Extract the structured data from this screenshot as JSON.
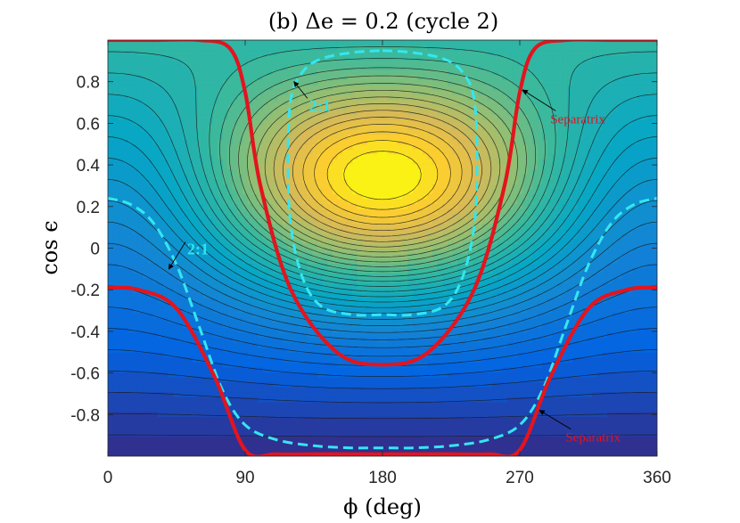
{
  "chart_data": {
    "type": "contour",
    "title": "(b) Δe = 0.2 (cycle 2)",
    "xlabel": "ϕ (deg)",
    "ylabel": "cos ϵ",
    "xlim": [
      0,
      360
    ],
    "ylim": [
      -1,
      1
    ],
    "xticks": [
      0,
      90,
      180,
      270,
      360
    ],
    "yticks": [
      -0.8,
      -0.6,
      -0.4,
      -0.2,
      0,
      0.2,
      0.4,
      0.6,
      0.8
    ],
    "xtick_labels": [
      "0",
      "90",
      "180",
      "270",
      "360"
    ],
    "ytick_labels": [
      "-0.8",
      "-0.6",
      "-0.4",
      "-0.2",
      "0",
      "0.2",
      "0.4",
      "0.6",
      "0.8"
    ],
    "grid": false,
    "colormap": "parula",
    "hamiltonian": {
      "center_cos": 0.42,
      "alpha": 3.0,
      "width": 0.33
    },
    "separatrix_lower": {
      "phi": [
        0,
        20,
        45,
        70,
        90,
        110,
        135,
        160,
        180,
        200,
        225,
        250,
        270,
        290,
        315,
        340,
        360
      ],
      "cos": [
        -0.19,
        -0.2,
        -0.29,
        -0.62,
        -0.97,
        -0.99,
        -0.99,
        -0.99,
        -0.99,
        -0.99,
        -0.99,
        -0.99,
        -0.97,
        -0.62,
        -0.29,
        -0.2,
        -0.19
      ]
    },
    "separatrix_upper": {
      "phi": [
        0,
        30,
        60,
        80,
        90,
        100,
        120,
        150,
        180,
        210,
        240,
        260,
        270,
        280,
        300,
        330,
        360
      ],
      "cos": [
        1.0,
        1.0,
        1.0,
        0.96,
        0.75,
        0.3,
        -0.2,
        -0.5,
        -0.56,
        -0.5,
        -0.2,
        0.3,
        0.75,
        0.96,
        1.0,
        1.0,
        1.0
      ]
    },
    "resonance_upper": {
      "phi": [
        180,
        200,
        220,
        232,
        240,
        242,
        240,
        232,
        220,
        200,
        180,
        160,
        140,
        128,
        120,
        118,
        120,
        128,
        140,
        160,
        180
      ],
      "cos": [
        0.95,
        0.94,
        0.91,
        0.85,
        0.72,
        0.42,
        0.1,
        -0.15,
        -0.28,
        -0.32,
        -0.32,
        -0.32,
        -0.28,
        -0.15,
        0.1,
        0.42,
        0.72,
        0.85,
        0.91,
        0.94,
        0.95
      ]
    },
    "resonance_lower": {
      "phi": [
        0,
        15,
        30,
        45,
        60,
        75,
        90,
        110,
        135,
        160,
        180,
        200,
        225,
        250,
        270,
        285,
        300,
        315,
        330,
        345,
        360
      ],
      "cos": [
        0.24,
        0.21,
        0.12,
        -0.08,
        -0.38,
        -0.68,
        -0.85,
        -0.92,
        -0.95,
        -0.96,
        -0.96,
        -0.96,
        -0.95,
        -0.92,
        -0.85,
        -0.68,
        -0.38,
        -0.08,
        0.12,
        0.21,
        0.24
      ]
    },
    "annotations": [
      {
        "text": "Separatrix",
        "style": "red",
        "x": 290,
        "y": 0.6,
        "arrow_to": [
          272,
          0.76
        ]
      },
      {
        "text": "Separatrix",
        "style": "red",
        "x": 300,
        "y": -0.93,
        "arrow_to": [
          283,
          -0.78
        ]
      },
      {
        "text": "2:1",
        "style": "cyan",
        "x": 132,
        "y": 0.66,
        "arrow_to": [
          122,
          0.8
        ]
      },
      {
        "text": "2:1",
        "style": "cyan",
        "x": 52,
        "y": -0.03,
        "arrow_to": [
          40,
          -0.1
        ]
      }
    ]
  }
}
